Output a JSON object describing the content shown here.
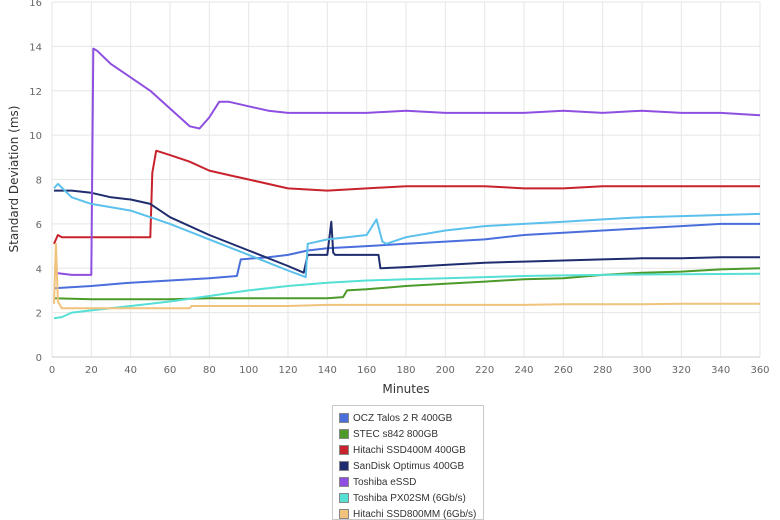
{
  "chart_data": {
    "type": "line",
    "xlabel": "Minutes",
    "ylabel": "Standard Deviation (ms)",
    "xlim": [
      0,
      360
    ],
    "ylim": [
      0,
      16
    ],
    "xticks": [
      0,
      20,
      40,
      60,
      80,
      100,
      120,
      140,
      160,
      180,
      200,
      220,
      240,
      260,
      280,
      300,
      320,
      340,
      360
    ],
    "yticks": [
      0,
      2,
      4,
      6,
      8,
      10,
      12,
      14,
      16
    ],
    "grid": true,
    "legend_position": "bottom-center",
    "series": [
      {
        "name": "OCZ Talos 2 R 400GB",
        "color": "#4a6fdc",
        "x": [
          1,
          20,
          40,
          60,
          80,
          94,
          96,
          110,
          120,
          130,
          140,
          160,
          180,
          200,
          220,
          240,
          260,
          280,
          300,
          320,
          340,
          360
        ],
        "y": [
          3.1,
          3.2,
          3.35,
          3.45,
          3.55,
          3.65,
          4.4,
          4.5,
          4.6,
          4.8,
          4.9,
          5.0,
          5.1,
          5.2,
          5.3,
          5.5,
          5.6,
          5.7,
          5.8,
          5.9,
          6.0,
          6.0
        ]
      },
      {
        "name": "STEC s842 800GB",
        "color": "#4c9a2a",
        "x": [
          1,
          20,
          40,
          60,
          80,
          100,
          120,
          140,
          148,
          150,
          160,
          180,
          200,
          220,
          240,
          260,
          280,
          300,
          320,
          340,
          360
        ],
        "y": [
          2.65,
          2.6,
          2.6,
          2.6,
          2.65,
          2.65,
          2.65,
          2.65,
          2.7,
          3.0,
          3.05,
          3.2,
          3.3,
          3.4,
          3.5,
          3.55,
          3.7,
          3.8,
          3.85,
          3.95,
          4.0
        ]
      },
      {
        "name": "Hitachi SSD400M 400GB",
        "color": "#c8232c",
        "x": [
          1,
          3,
          5,
          10,
          20,
          30,
          40,
          50,
          51,
          53,
          60,
          70,
          80,
          90,
          100,
          120,
          140,
          160,
          180,
          200,
          220,
          240,
          260,
          280,
          300,
          320,
          340,
          360
        ],
        "y": [
          5.1,
          5.5,
          5.4,
          5.4,
          5.4,
          5.4,
          5.4,
          5.4,
          8.3,
          9.3,
          9.1,
          8.8,
          8.4,
          8.2,
          8.0,
          7.6,
          7.5,
          7.6,
          7.7,
          7.7,
          7.7,
          7.6,
          7.6,
          7.7,
          7.7,
          7.7,
          7.7,
          7.7
        ]
      },
      {
        "name": "SanDisk Optimus 400GB",
        "color": "#1f2d6e",
        "x": [
          1,
          5,
          10,
          20,
          30,
          40,
          50,
          60,
          80,
          100,
          120,
          128,
          130,
          140,
          142,
          143,
          144,
          150,
          160,
          166,
          167,
          180,
          200,
          220,
          240,
          260,
          280,
          300,
          320,
          340,
          360
        ],
        "y": [
          7.5,
          7.5,
          7.5,
          7.4,
          7.2,
          7.1,
          6.9,
          6.3,
          5.5,
          4.8,
          4.1,
          3.8,
          4.6,
          4.6,
          6.1,
          4.7,
          4.6,
          4.6,
          4.6,
          4.6,
          4.0,
          4.05,
          4.15,
          4.25,
          4.3,
          4.35,
          4.4,
          4.45,
          4.45,
          4.5,
          4.5
        ]
      },
      {
        "name": "Toshiba eSSD",
        "color": "#8e4fe0",
        "x": [
          1,
          10,
          20,
          21,
          23,
          30,
          40,
          50,
          60,
          70,
          75,
          80,
          85,
          90,
          100,
          110,
          120,
          140,
          160,
          180,
          200,
          220,
          240,
          260,
          280,
          300,
          320,
          340,
          360
        ],
        "y": [
          3.8,
          3.7,
          3.7,
          13.9,
          13.8,
          13.2,
          12.6,
          12.0,
          11.2,
          10.4,
          10.3,
          10.8,
          11.5,
          11.5,
          11.3,
          11.1,
          11.0,
          11.0,
          11.0,
          11.1,
          11.0,
          11.0,
          11.0,
          11.1,
          11.0,
          11.1,
          11.0,
          11.0,
          10.9
        ]
      },
      {
        "name": "Toshiba PX02SM (6Gb/s)",
        "color": "#55e0d6",
        "x": [
          1,
          5,
          10,
          20,
          40,
          60,
          80,
          100,
          120,
          140,
          160,
          180,
          200,
          220,
          240,
          260,
          280,
          300,
          320,
          340,
          360
        ],
        "y": [
          1.75,
          1.8,
          2.0,
          2.1,
          2.3,
          2.5,
          2.75,
          3.0,
          3.2,
          3.35,
          3.45,
          3.5,
          3.55,
          3.6,
          3.65,
          3.68,
          3.7,
          3.72,
          3.73,
          3.74,
          3.75
        ]
      },
      {
        "name": "Hitachi SSD800MM (6Gb/s)",
        "color": "#f0c27b",
        "x": [
          1,
          2,
          3,
          5,
          20,
          40,
          60,
          70,
          71,
          80,
          100,
          120,
          140,
          160,
          180,
          200,
          220,
          240,
          260,
          280,
          300,
          320,
          340,
          360
        ],
        "y": [
          2.4,
          5.1,
          2.5,
          2.2,
          2.2,
          2.2,
          2.2,
          2.2,
          2.3,
          2.3,
          2.3,
          2.3,
          2.35,
          2.35,
          2.35,
          2.35,
          2.35,
          2.35,
          2.38,
          2.38,
          2.38,
          2.4,
          2.4,
          2.4
        ]
      },
      {
        "name": "",
        "color": "#5bc0eb",
        "x": [
          1,
          3,
          10,
          20,
          40,
          60,
          80,
          100,
          120,
          129,
          130,
          140,
          150,
          160,
          165,
          168,
          170,
          180,
          200,
          220,
          240,
          260,
          280,
          300,
          320,
          340,
          360
        ],
        "y": [
          7.6,
          7.8,
          7.2,
          6.9,
          6.6,
          6.0,
          5.3,
          4.6,
          3.9,
          3.6,
          5.1,
          5.3,
          5.4,
          5.5,
          6.2,
          5.2,
          5.1,
          5.4,
          5.7,
          5.9,
          6.0,
          6.1,
          6.2,
          6.3,
          6.35,
          6.4,
          6.45
        ]
      }
    ]
  }
}
